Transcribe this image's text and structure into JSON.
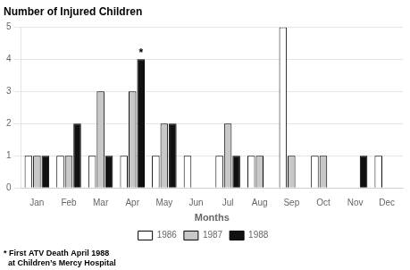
{
  "chart_data": {
    "type": "bar",
    "title": "Number of Injured Children",
    "xlabel": "Months",
    "categories": [
      "Jan",
      "Feb",
      "Mar",
      "Apr",
      "May",
      "Jun",
      "Jul",
      "Aug",
      "Sep",
      "Oct",
      "Nov",
      "Dec"
    ],
    "series": [
      {
        "name": "1986",
        "color": "#ffffff",
        "values": [
          1,
          1,
          1,
          1,
          1,
          1,
          1,
          1,
          5,
          1,
          0,
          1
        ]
      },
      {
        "name": "1987",
        "color": "#c8c8c8",
        "values": [
          1,
          1,
          3,
          3,
          2,
          0,
          2,
          1,
          1,
          1,
          0,
          0
        ]
      },
      {
        "name": "1988",
        "color": "#111111",
        "values": [
          1,
          2,
          1,
          4,
          2,
          0,
          1,
          0,
          0,
          0,
          1,
          0
        ]
      }
    ],
    "ylim": [
      0,
      5
    ],
    "yticks": [
      0,
      1,
      2,
      3,
      4,
      5
    ],
    "grid": true,
    "legend": "bottom",
    "annotations": [
      {
        "text": "*",
        "x": "Apr",
        "series": "1988"
      }
    ],
    "footnote": [
      "* First ATV Death April 1988",
      "  at Children’s Mercy Hospital"
    ]
  }
}
